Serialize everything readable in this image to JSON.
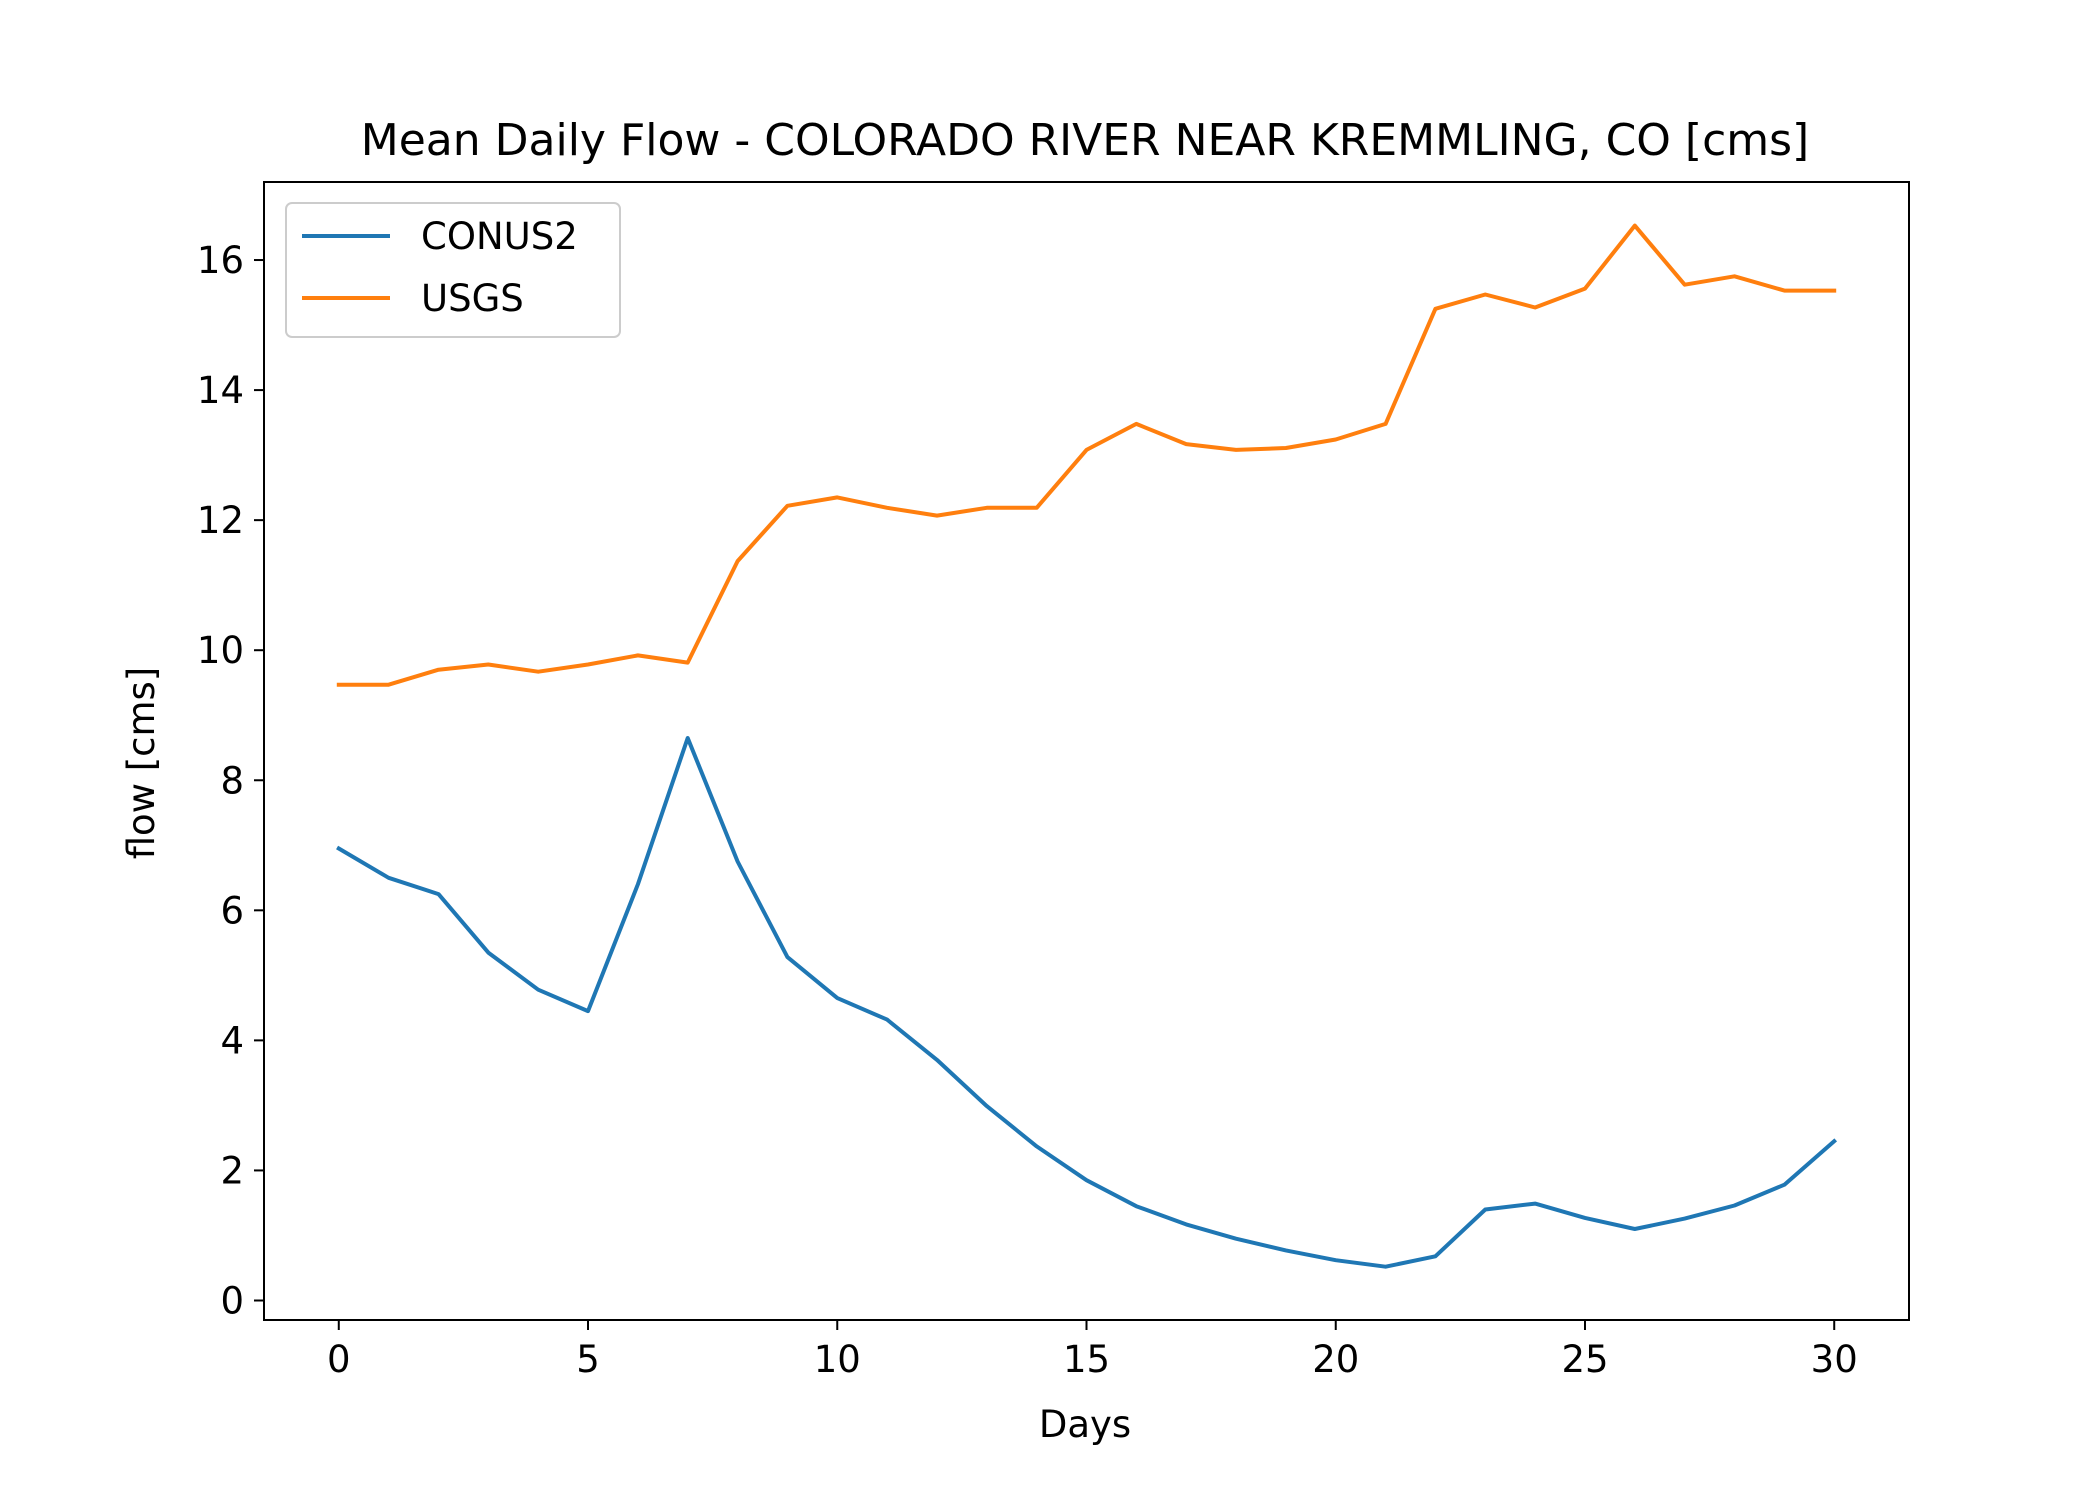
{
  "chart_data": {
    "type": "line",
    "title": "Mean Daily Flow - COLORADO RIVER NEAR KREMMLING, CO [cms]",
    "xlabel": "Days",
    "ylabel": "flow [cms]",
    "xlim": [
      -1.5,
      31.5
    ],
    "ylim": [
      -0.3,
      17.2
    ],
    "xticks": [
      0,
      5,
      10,
      15,
      20,
      25,
      30
    ],
    "yticks": [
      0,
      2,
      4,
      6,
      8,
      10,
      12,
      14,
      16
    ],
    "grid": false,
    "legend_position": "upper-left",
    "x": [
      0,
      1,
      2,
      3,
      4,
      5,
      6,
      7,
      8,
      9,
      10,
      11,
      12,
      13,
      14,
      15,
      16,
      17,
      18,
      19,
      20,
      21,
      22,
      23,
      24,
      25,
      26,
      27,
      28,
      29,
      30
    ],
    "series": [
      {
        "name": "CONUS2",
        "color": "#1f77b4",
        "values": [
          6.95,
          6.5,
          6.25,
          5.35,
          4.78,
          4.45,
          6.4,
          8.65,
          6.75,
          5.28,
          4.65,
          4.32,
          3.7,
          2.99,
          2.37,
          1.85,
          1.45,
          1.17,
          0.95,
          0.77,
          0.62,
          0.52,
          0.68,
          1.4,
          1.49,
          1.27,
          1.1,
          1.26,
          1.46,
          1.78,
          2.45
        ]
      },
      {
        "name": "USGS",
        "color": "#ff7f0e",
        "values": [
          9.47,
          9.47,
          9.7,
          9.78,
          9.67,
          9.78,
          9.92,
          9.81,
          11.37,
          12.22,
          12.35,
          12.19,
          12.07,
          12.19,
          12.19,
          13.08,
          13.48,
          13.17,
          13.08,
          13.11,
          13.24,
          13.48,
          15.25,
          15.47,
          15.27,
          15.56,
          16.53,
          15.62,
          15.75,
          15.53,
          15.53
        ]
      }
    ]
  }
}
